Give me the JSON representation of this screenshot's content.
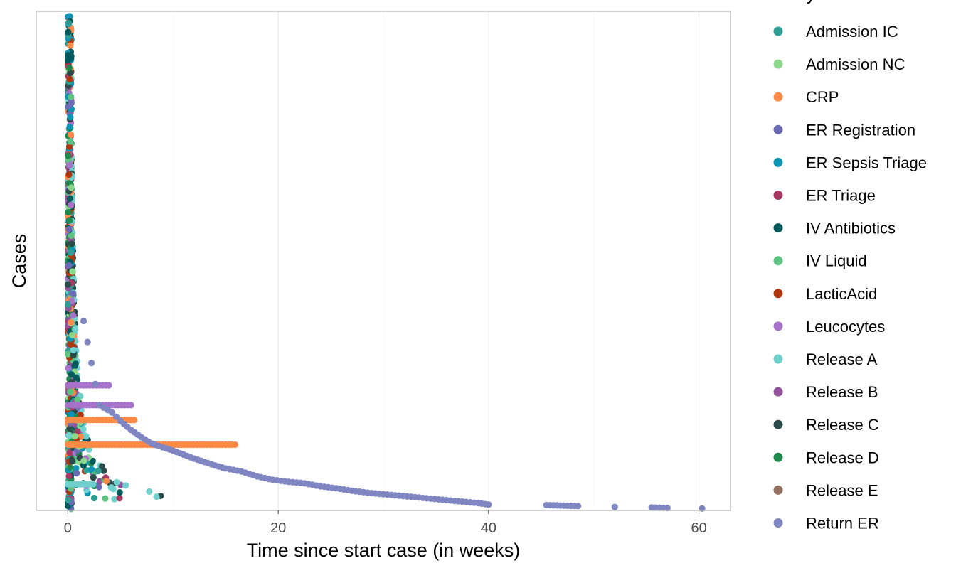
{
  "chart_data": {
    "type": "scatter",
    "title": "",
    "xlabel": "Time since start case (in weeks)",
    "ylabel": "Cases",
    "xlim": [
      -3,
      63
    ],
    "xticks": [
      0,
      20,
      40,
      60
    ],
    "xtick_labels": [
      "0",
      "20",
      "40",
      "60"
    ],
    "grid": "vertical",
    "legend_title": "activity",
    "legend_position": "right",
    "categories": [
      {
        "name": "Admission IC",
        "color": "#2E9E95"
      },
      {
        "name": "Admission NC",
        "color": "#8CD98C"
      },
      {
        "name": "CRP",
        "color": "#FF8A45"
      },
      {
        "name": "ER Registration",
        "color": "#6B6BB5"
      },
      {
        "name": "ER Sepsis Triage",
        "color": "#0E94B5"
      },
      {
        "name": "ER Triage",
        "color": "#A63A63"
      },
      {
        "name": "IV Antibiotics",
        "color": "#005A5C"
      },
      {
        "name": "IV Liquid",
        "color": "#5EC281"
      },
      {
        "name": "LacticAcid",
        "color": "#B0380F"
      },
      {
        "name": "Leucocytes",
        "color": "#A772C9"
      },
      {
        "name": "Release A",
        "color": "#6FD1CE"
      },
      {
        "name": "Release B",
        "color": "#93529B"
      },
      {
        "name": "Release C",
        "color": "#2B4A4A"
      },
      {
        "name": "Release D",
        "color": "#1E8A4E"
      },
      {
        "name": "Release E",
        "color": "#957060"
      },
      {
        "name": "Return ER",
        "color": "#7F86C2"
      }
    ],
    "return_er_curve": [
      {
        "x": 1.5,
        "y": 0.38
      },
      {
        "x": 3.0,
        "y": 0.21
      },
      {
        "x": 4.2,
        "y": 0.195
      },
      {
        "x": 5.0,
        "y": 0.178
      },
      {
        "x": 6.0,
        "y": 0.16
      },
      {
        "x": 7.0,
        "y": 0.145
      },
      {
        "x": 8.0,
        "y": 0.132
      },
      {
        "x": 9.0,
        "y": 0.125
      },
      {
        "x": 10.0,
        "y": 0.118
      },
      {
        "x": 11.0,
        "y": 0.11
      },
      {
        "x": 12.0,
        "y": 0.102
      },
      {
        "x": 13.0,
        "y": 0.095
      },
      {
        "x": 14.0,
        "y": 0.088
      },
      {
        "x": 15.0,
        "y": 0.082
      },
      {
        "x": 16.5,
        "y": 0.076
      },
      {
        "x": 18.0,
        "y": 0.066
      },
      {
        "x": 19.5,
        "y": 0.059
      },
      {
        "x": 21.0,
        "y": 0.055
      },
      {
        "x": 22.5,
        "y": 0.052
      },
      {
        "x": 24.0,
        "y": 0.046
      },
      {
        "x": 25.5,
        "y": 0.042
      },
      {
        "x": 27.0,
        "y": 0.037
      },
      {
        "x": 28.5,
        "y": 0.033
      },
      {
        "x": 30.0,
        "y": 0.03
      },
      {
        "x": 31.5,
        "y": 0.027
      },
      {
        "x": 33.0,
        "y": 0.024
      },
      {
        "x": 34.5,
        "y": 0.021
      },
      {
        "x": 36.0,
        "y": 0.018
      },
      {
        "x": 37.5,
        "y": 0.015
      },
      {
        "x": 39.0,
        "y": 0.012
      },
      {
        "x": 40.0,
        "y": 0.009
      },
      {
        "x": 45.5,
        "y": 0.008
      },
      {
        "x": 48.5,
        "y": 0.006
      },
      {
        "x": 52.0,
        "y": 0.004
      },
      {
        "x": 55.5,
        "y": 0.003
      },
      {
        "x": 57.0,
        "y": 0.002
      },
      {
        "x": 60.3,
        "y": 0.001
      }
    ],
    "extended_rows": [
      {
        "y": 0.13,
        "x_from": 0.0,
        "x_to": 16.0,
        "color": "#FF8A45"
      },
      {
        "y": 0.18,
        "x_from": 0.0,
        "x_to": 6.5,
        "color": "#FF8A45"
      },
      {
        "y": 0.21,
        "x_from": 0.0,
        "x_to": 6.0,
        "color": "#A772C9"
      },
      {
        "y": 0.25,
        "x_from": 0.0,
        "x_to": 4.0,
        "color": "#A772C9"
      },
      {
        "y": 0.05,
        "x_from": 0.0,
        "x_to": 2.4,
        "color": "#6FD1CE"
      }
    ]
  }
}
